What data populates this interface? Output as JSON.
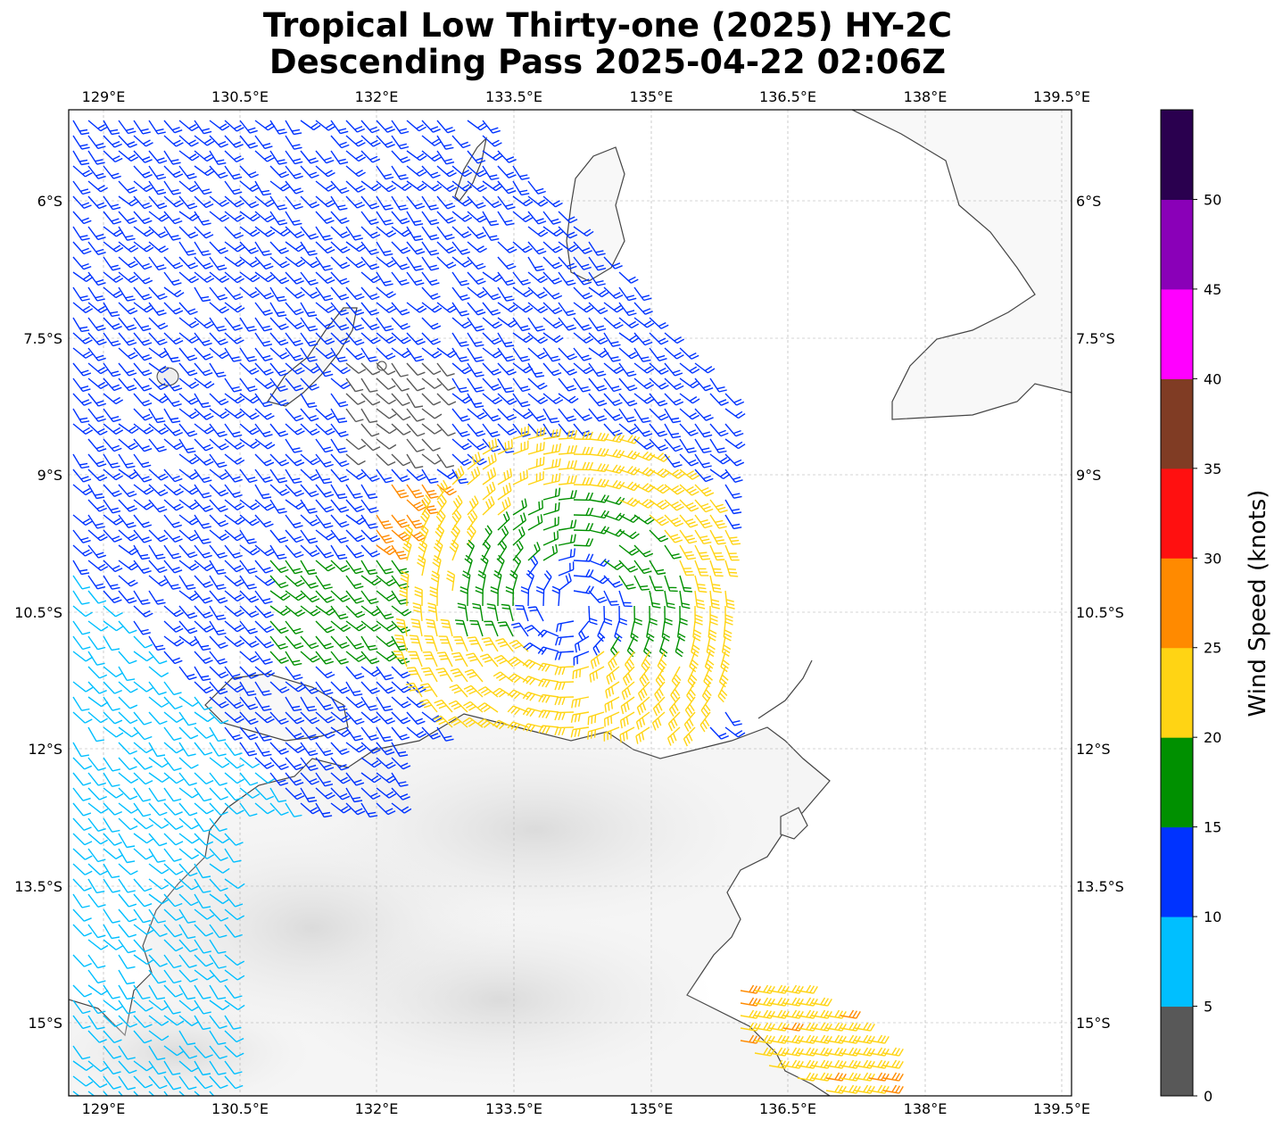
{
  "title_line1": "Tropical Low Thirty-one (2025) HY-2C",
  "title_line2": "Descending Pass 2025-04-22 02:06Z",
  "lon_ticks": [
    "129°E",
    "130.5°E",
    "132°E",
    "133.5°E",
    "135°E",
    "136.5°E",
    "138°E",
    "139.5°E"
  ],
  "lat_ticks": [
    "6°S",
    "7.5°S",
    "9°S",
    "10.5°S",
    "12°S",
    "13.5°S",
    "15°S"
  ],
  "colorbar": {
    "label": "Wind Speed (knots)",
    "ticks": [
      "0",
      "5",
      "10",
      "15",
      "20",
      "25",
      "30",
      "35",
      "40",
      "45",
      "50"
    ],
    "colors": [
      "#585858",
      "#00bfff",
      "#0033ff",
      "#009000",
      "#ffd414",
      "#ff8a00",
      "#ff1010",
      "#803c24",
      "#ff00ff",
      "#8a00b8",
      "#2a004f"
    ]
  },
  "colors": {
    "land_outline": "#444444",
    "grid": "#aaaaaa"
  }
}
